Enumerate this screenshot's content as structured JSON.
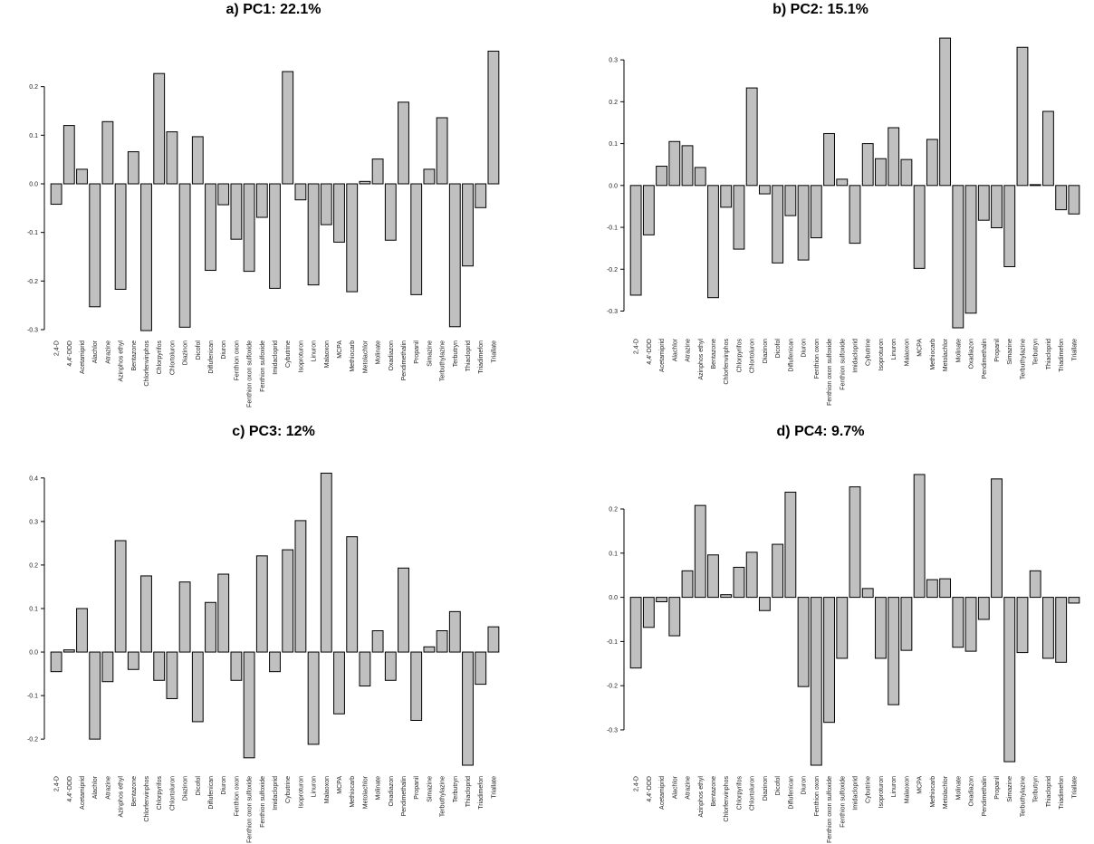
{
  "chart_data": [
    {
      "type": "bar",
      "title": "a) PC1: 22.1%",
      "ylim": [
        -0.3,
        0.3
      ],
      "yticks": [
        -0.3,
        -0.2,
        -0.1,
        0.0,
        0.1,
        0.2
      ],
      "ytick_labels": [
        "-0.3",
        "-0.2",
        "-0.1",
        "0.0",
        "0.1",
        "0.2"
      ],
      "categories": [
        "2,4-D",
        "4,4'-DDD",
        "Acetamiprid",
        "Alachlor",
        "Atrazine",
        "Azinphos ethyl",
        "Bentazone",
        "Chlorfenvinphos",
        "Chlorpyrifos",
        "Chlortoluron",
        "Diazinon",
        "Dicofol",
        "Diflufenican",
        "Diuron",
        "Fenthion oxon",
        "Fenthion oxon sulfoxide",
        "Fenthion sulfoxide",
        "Imidacloprid",
        "Cybutrine",
        "Isoproturon",
        "Linuron",
        "Malaoxon",
        "MCPA",
        "Methiocarb",
        "Metolachlor",
        "Molinate",
        "Oxadiazon",
        "Pendimethalin",
        "Propanil",
        "Simazine",
        "Terbuthylazine",
        "Terbutryn",
        "Thiacloprid",
        "Triadimefon",
        "Triallate"
      ],
      "values": [
        -0.042,
        0.12,
        0.03,
        -0.253,
        0.128,
        -0.217,
        0.066,
        -0.302,
        0.227,
        0.107,
        -0.295,
        0.097,
        -0.178,
        -0.043,
        -0.114,
        -0.18,
        -0.069,
        -0.215,
        0.231,
        -0.033,
        -0.208,
        -0.084,
        -0.12,
        -0.222,
        0.005,
        0.051,
        -0.116,
        0.168,
        -0.228,
        0.03,
        0.136,
        -0.294,
        -0.169,
        -0.049,
        0.273
      ]
    },
    {
      "type": "bar",
      "title": "b) PC2: 15.1%",
      "ylim": [
        -0.34,
        0.35
      ],
      "yticks": [
        -0.3,
        -0.2,
        -0.1,
        0.0,
        0.1,
        0.2,
        0.3
      ],
      "ytick_labels": [
        "-0.3",
        "-0.2",
        "-0.1",
        "0.0",
        "0.1",
        "0.2",
        "0.3"
      ],
      "categories": [
        "2,4-D",
        "4,4'-DDD",
        "Acetamiprid",
        "Alachlor",
        "Atrazine",
        "Azinphos ethyl",
        "Bentazone",
        "Chlorfenvinphos",
        "Chlorpyrifos",
        "Chlortoluron",
        "Diazinon",
        "Dicofol",
        "Diflufenican",
        "Diuron",
        "Fenthion oxon",
        "Fenthion oxon sulfoxide",
        "Fenthion sulfoxide",
        "Imidacloprid",
        "Cybutrine",
        "Isoproturon",
        "Linuron",
        "Malaoxon",
        "MCPA",
        "Methiocarb",
        "Metolachlor",
        "Molinate",
        "Oxadiazon",
        "Pendimethalin",
        "Propanil",
        "Simazine",
        "Terbuthylazine",
        "Terbutryn",
        "Thiacloprid",
        "Triadimefon",
        "Triallate"
      ],
      "values": [
        -0.262,
        -0.118,
        0.046,
        0.105,
        0.095,
        0.043,
        -0.268,
        -0.052,
        -0.152,
        0.233,
        -0.02,
        -0.185,
        -0.072,
        -0.178,
        -0.125,
        0.124,
        0.015,
        -0.138,
        0.1,
        0.064,
        0.138,
        0.062,
        -0.198,
        0.11,
        0.352,
        -0.34,
        -0.305,
        -0.083,
        -0.101,
        -0.194,
        0.33,
        0.002,
        0.177,
        -0.058,
        -0.068
      ]
    },
    {
      "type": "bar",
      "title": "c) PC3: 12%",
      "ylim": [
        -0.26,
        0.41
      ],
      "yticks": [
        -0.2,
        -0.1,
        0.0,
        0.1,
        0.2,
        0.3,
        0.4
      ],
      "ytick_labels": [
        "-0.2",
        "-0.1",
        "0.0",
        "0.1",
        "0.2",
        "0.3",
        "0.4"
      ],
      "categories": [
        "2,4-D",
        "4,4'-DDD",
        "Acetamiprid",
        "Alachlor",
        "Atrazine",
        "Azinphos ethyl",
        "Bentazone",
        "Chlorfenvinphos",
        "Chlorpyrifos",
        "Chlortoluron",
        "Diazinon",
        "Dicofol",
        "Diflufenican",
        "Diuron",
        "Fenthion oxon",
        "Fenthion oxon sulfoxide",
        "Fenthion sulfoxide",
        "Imidacloprid",
        "Cybutrine",
        "Isoproturon",
        "Linuron",
        "Malaoxon",
        "MCPA",
        "Methiocarb",
        "Metolachlor",
        "Molinate",
        "Oxadiazon",
        "Pendimethalin",
        "Propanil",
        "Simazine",
        "Terbuthylazine",
        "Terbutryn",
        "Thiacloprid",
        "Triadimefon",
        "Triallate"
      ],
      "values": [
        -0.045,
        0.005,
        0.1,
        -0.2,
        -0.068,
        0.256,
        -0.04,
        0.175,
        -0.065,
        -0.107,
        0.161,
        -0.16,
        0.114,
        0.179,
        -0.065,
        -0.243,
        0.221,
        -0.045,
        0.235,
        0.302,
        -0.212,
        0.411,
        -0.142,
        0.265,
        -0.078,
        0.049,
        -0.065,
        0.193,
        -0.157,
        0.012,
        0.049,
        0.093,
        -0.26,
        -0.074,
        0.058
      ]
    },
    {
      "type": "bar",
      "title": "d) PC4: 9.7%",
      "ylim": [
        -0.38,
        0.28
      ],
      "yticks": [
        -0.3,
        -0.2,
        -0.1,
        0.0,
        0.1,
        0.2
      ],
      "ytick_labels": [
        "-0.3",
        "-0.2",
        "-0.1",
        "0.0",
        "0.1",
        "0.2"
      ],
      "categories": [
        "2,4-D",
        "4,4'-DDD",
        "Acetamiprid",
        "Alachlor",
        "Atrazine",
        "Azinphos ethyl",
        "Bentazone",
        "Chlorfenvinphos",
        "Chlorpyrifos",
        "Chlortoluron",
        "Diazinon",
        "Dicofol",
        "Diflufenican",
        "Diuron",
        "Fenthion oxon",
        "Fenthion oxon sulfoxide",
        "Fenthion sulfoxide",
        "Imidacloprid",
        "Cybutrine",
        "Isoproturon",
        "Linuron",
        "Malaoxon",
        "MCPA",
        "Methiocarb",
        "Metolachlor",
        "Molinate",
        "Oxadiazon",
        "Pendimethalin",
        "Propanil",
        "Simazine",
        "Terbuthylazine",
        "Terbutryn",
        "Thiacloprid",
        "Triadimefon",
        "Triallate"
      ],
      "values": [
        -0.16,
        -0.068,
        -0.01,
        -0.087,
        0.06,
        0.208,
        0.096,
        0.006,
        0.068,
        0.102,
        -0.03,
        0.12,
        0.238,
        -0.202,
        -0.38,
        -0.283,
        -0.138,
        0.25,
        0.02,
        -0.138,
        -0.243,
        -0.12,
        0.278,
        0.04,
        0.042,
        -0.113,
        -0.122,
        -0.05,
        0.268,
        -0.372,
        -0.125,
        0.06,
        -0.138,
        -0.147,
        -0.013
      ]
    }
  ]
}
